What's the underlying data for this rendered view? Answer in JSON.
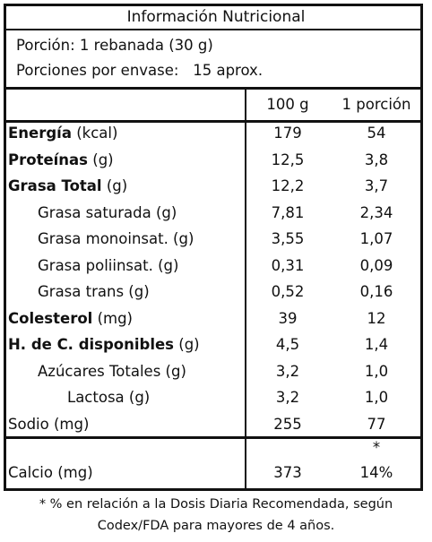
{
  "title": "Información Nutricional",
  "serving": {
    "portion_label": "Porción:",
    "portion_value": "1 rebanada (30 g)",
    "per_package_label": "Porciones por envase:",
    "per_package_value": "15 aprox."
  },
  "columns": {
    "c100": "100 g",
    "c_portion": "1 porción"
  },
  "rows": [
    {
      "name_bold": "Energía",
      "name_unit": " (kcal)",
      "v100": "179",
      "vport": "54"
    },
    {
      "name_bold": "Proteínas",
      "name_unit": " (g)",
      "v100": "12,5",
      "vport": "3,8"
    },
    {
      "name_bold": "Grasa Total",
      "name_unit": " (g)",
      "v100": "12,2",
      "vport": "3,7"
    },
    {
      "name_bold": "",
      "name_unit": "Grasa saturada (g)",
      "v100": "7,81",
      "vport": "2,34"
    },
    {
      "name_bold": "",
      "name_unit": "Grasa monoinsat. (g)",
      "v100": "3,55",
      "vport": "1,07"
    },
    {
      "name_bold": "",
      "name_unit": "Grasa poliinsat. (g)",
      "v100": "0,31",
      "vport": "0,09"
    },
    {
      "name_bold": "",
      "name_unit": "Grasa trans (g)",
      "v100": "0,52",
      "vport": "0,16"
    },
    {
      "name_bold": "Colesterol",
      "name_unit": " (mg)",
      "v100": "39",
      "vport": "12"
    },
    {
      "name_bold": "H. de C. disponibles",
      "name_unit": " (g)",
      "v100": "4,5",
      "vport": "1,4"
    },
    {
      "name_bold": "",
      "name_unit": "Azúcares Totales (g)",
      "v100": "3,2",
      "vport": "1,0"
    },
    {
      "name_bold": "",
      "name_unit": "Lactosa (g)",
      "v100": "3,2",
      "vport": "1,0"
    },
    {
      "name_bold": "",
      "name_unit": "Sodio (mg)",
      "v100": "255",
      "vport": "77"
    }
  ],
  "calcium": {
    "name": "Calcio (mg)",
    "v100": "373",
    "vport": "14%",
    "asterisk": "*"
  },
  "footnote": {
    "line1": "* % en relación a la Dosis Diaria Recomendada, según",
    "line2": "Codex/FDA para mayores de 4 años."
  }
}
